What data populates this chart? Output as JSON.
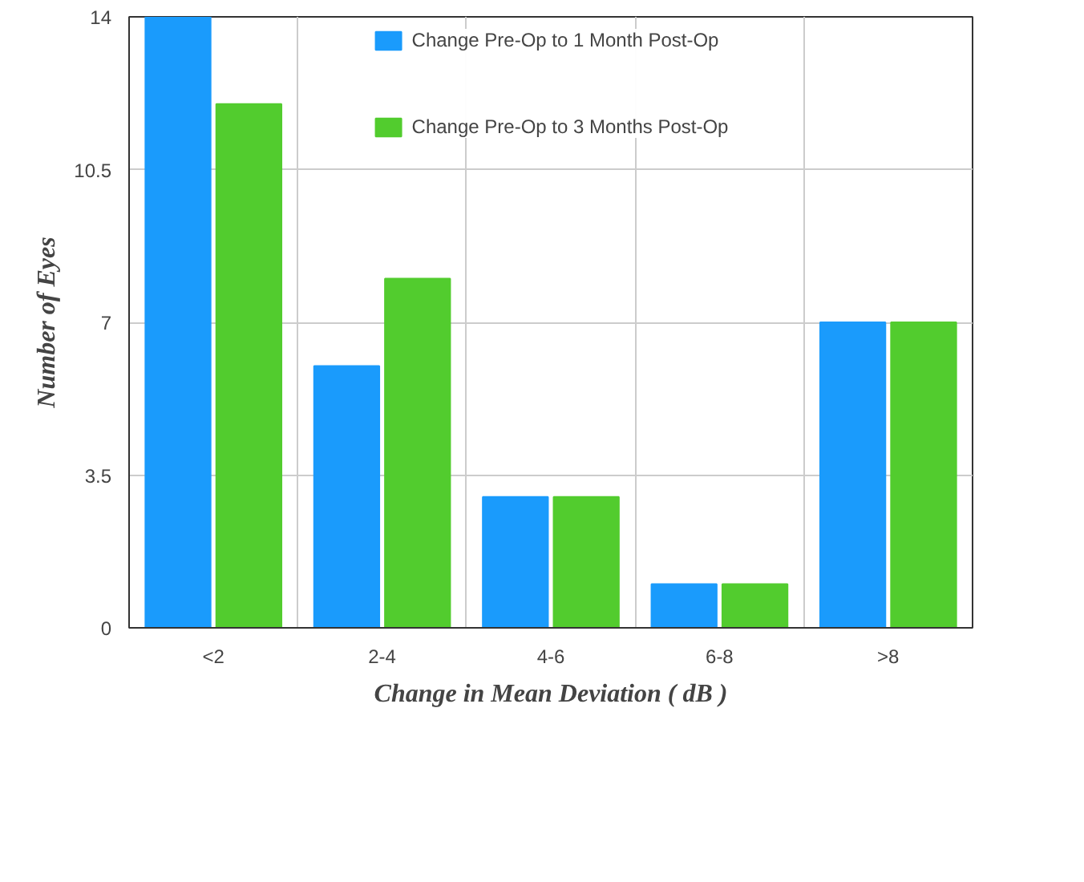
{
  "chart_data": {
    "type": "bar",
    "xlabel": "Change in Mean Deviation ( dB )",
    "ylabel": "Number of Eyes",
    "categories": [
      "<2",
      "2-4",
      "4-6",
      "6-8",
      ">8"
    ],
    "series": [
      {
        "name": "Change Pre-Op to 1 Month Post-Op",
        "color": "#1a9bfc",
        "values": [
          14,
          6,
          3,
          1,
          7
        ]
      },
      {
        "name": "Change Pre-Op to 3 Months Post-Op",
        "color": "#52cc2e",
        "values": [
          12,
          8,
          3,
          1,
          7
        ]
      }
    ],
    "ylim": [
      0,
      14
    ],
    "yticks": [
      0,
      3.5,
      7,
      10.5,
      14
    ],
    "grid": true,
    "legend": "top"
  }
}
